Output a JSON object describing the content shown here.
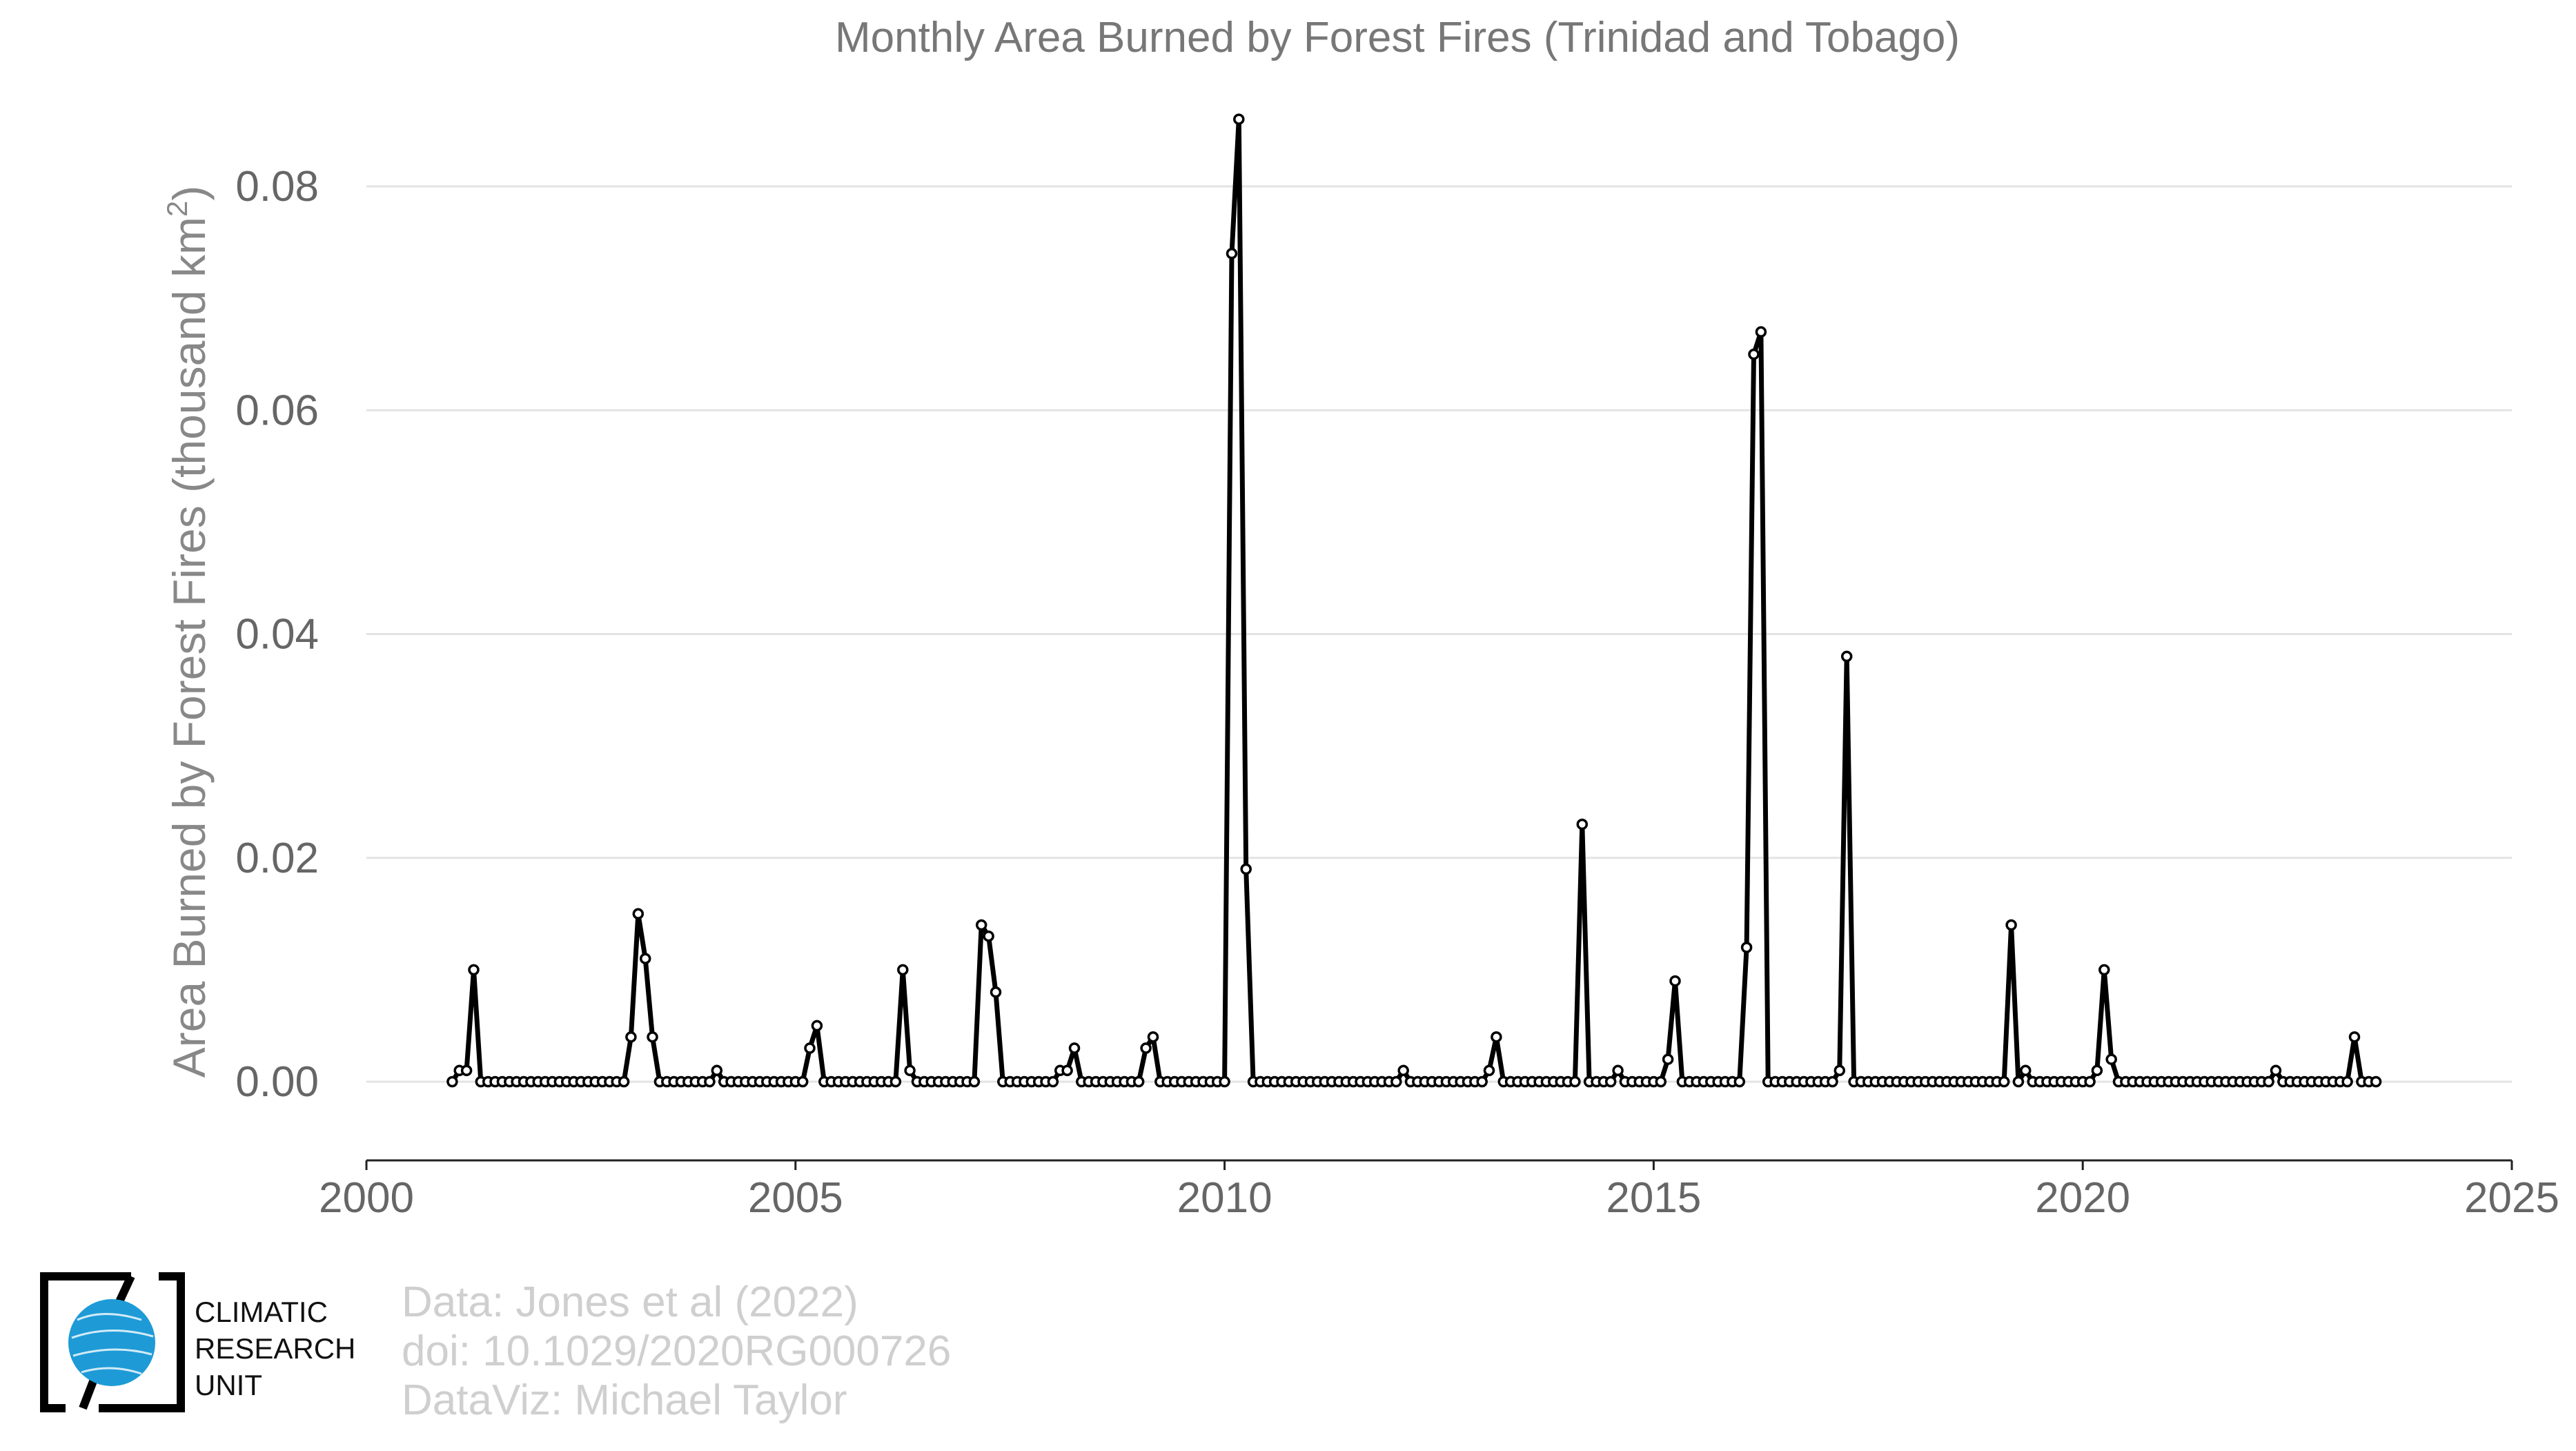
{
  "chart_data": {
    "type": "line",
    "title": "Monthly Area Burned by Forest Fires (Trinidad and Tobago)",
    "ylabel_main": "Area Burned by Forest Fires (thousand km",
    "ylabel_sup": "2",
    "ylabel_tail": ")",
    "xlim": [
      2000,
      2025
    ],
    "ylim": [
      -0.007,
      0.086
    ],
    "x_ticks": [
      "2000",
      "2005",
      "2010",
      "2015",
      "2020",
      "2025"
    ],
    "y_ticks": [
      "0.00",
      "0.02",
      "0.04",
      "0.06",
      "0.08"
    ],
    "grid": true,
    "series": [
      {
        "start": "2001-01",
        "frequency": "monthly",
        "values": [
          0,
          0.001,
          0.001,
          0.01,
          0,
          0,
          0,
          0,
          0,
          0,
          0,
          0,
          0,
          0,
          0,
          0,
          0,
          0,
          0,
          0,
          0,
          0,
          0,
          0,
          0,
          0.004,
          0.015,
          0.011,
          0.004,
          0,
          0,
          0,
          0,
          0,
          0,
          0,
          0,
          0.001,
          0,
          0,
          0,
          0,
          0,
          0,
          0,
          0,
          0,
          0,
          0,
          0,
          0.003,
          0.005,
          0,
          0,
          0,
          0,
          0,
          0,
          0,
          0,
          0,
          0,
          0,
          0.01,
          0.001,
          0,
          0,
          0,
          0,
          0,
          0,
          0,
          0,
          0,
          0.014,
          0.013,
          0.008,
          0,
          0,
          0,
          0,
          0,
          0,
          0,
          0,
          0.001,
          0.001,
          0.003,
          0,
          0,
          0,
          0,
          0,
          0,
          0,
          0,
          0,
          0.003,
          0.004,
          0,
          0,
          0,
          0,
          0,
          0,
          0,
          0,
          0,
          0,
          0.074,
          0.086,
          0.019,
          0,
          0,
          0,
          0,
          0,
          0,
          0,
          0,
          0,
          0,
          0,
          0,
          0,
          0,
          0,
          0,
          0,
          0,
          0,
          0,
          0,
          0.001,
          0,
          0,
          0,
          0,
          0,
          0,
          0,
          0,
          0,
          0,
          0,
          0.001,
          0.004,
          0,
          0,
          0,
          0,
          0,
          0,
          0,
          0,
          0,
          0,
          0,
          0.023,
          0,
          0,
          0,
          0,
          0.001,
          0,
          0,
          0,
          0,
          0,
          0,
          0.002,
          0.009,
          0,
          0,
          0,
          0,
          0,
          0,
          0,
          0,
          0,
          0.012,
          0.065,
          0.067,
          0,
          0,
          0,
          0,
          0,
          0,
          0,
          0,
          0,
          0,
          0.001,
          0.038,
          0,
          0,
          0,
          0,
          0,
          0,
          0,
          0,
          0,
          0,
          0,
          0,
          0,
          0,
          0,
          0,
          0,
          0,
          0,
          0,
          0,
          0,
          0.014,
          0,
          0.001,
          0,
          0,
          0,
          0,
          0,
          0,
          0,
          0,
          0,
          0.001,
          0.01,
          0.002,
          0,
          0,
          0,
          0,
          0,
          0,
          0,
          0,
          0,
          0,
          0,
          0,
          0,
          0,
          0,
          0,
          0,
          0,
          0,
          0,
          0,
          0,
          0.001,
          0,
          0,
          0,
          0,
          0,
          0,
          0,
          0,
          0,
          0,
          0.004,
          0,
          0,
          0
        ]
      }
    ]
  },
  "credits": {
    "line1": "Data: Jones et al (2022)",
    "line2": "doi: 10.1029/2020RG000726",
    "line3": "DataViz: Michael Taylor"
  },
  "logo": {
    "line1": "CLIMATIC",
    "line2": "RESEARCH",
    "line3": "UNIT",
    "globe_color": "#1e9bd7"
  }
}
